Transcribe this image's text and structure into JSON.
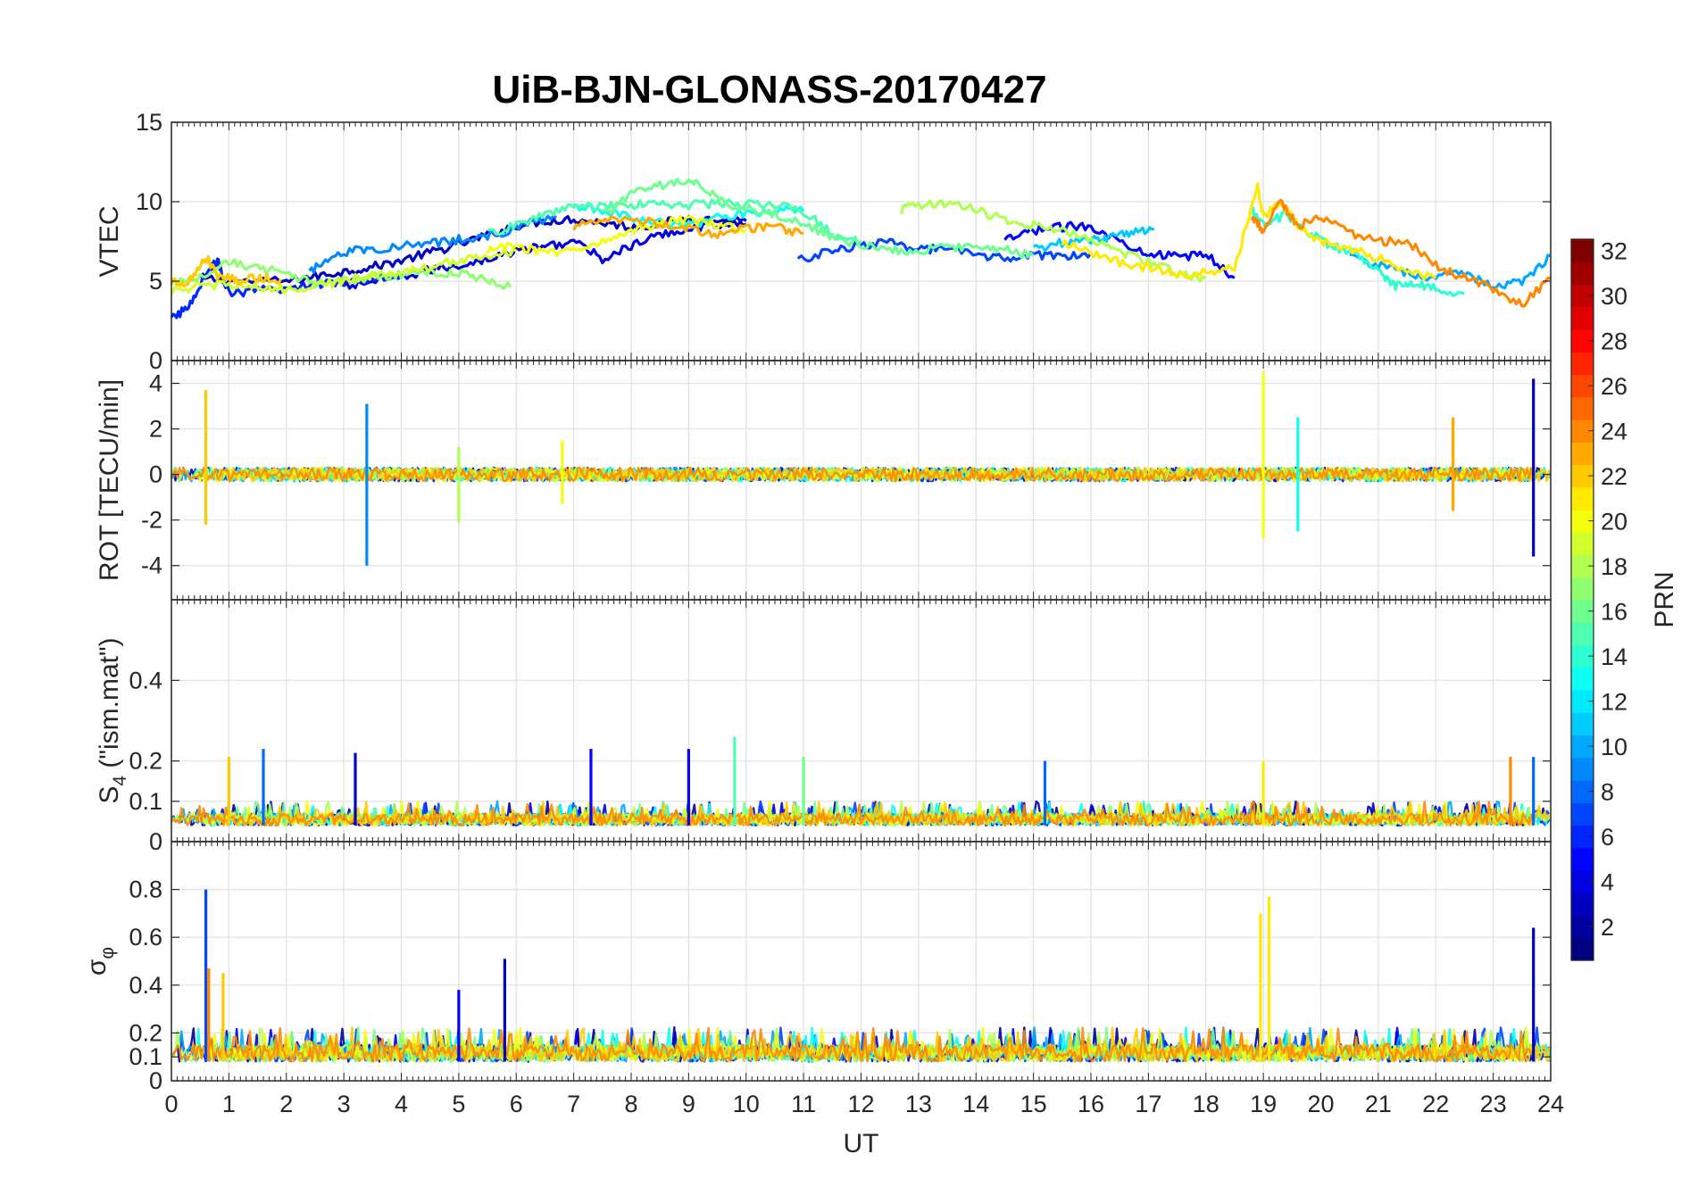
{
  "chart_data": [
    {
      "type": "line",
      "title": "UiB-BJN-GLONASS-20170427",
      "panel": "top",
      "ylabel": "VTEC",
      "xlabel": "",
      "xlim": [
        0,
        24
      ],
      "ylim": [
        0,
        15
      ],
      "yticks": [
        0,
        5,
        10,
        15
      ],
      "grid": true,
      "series": [
        {
          "prn": 3,
          "x": [
            0.5,
            1,
            2,
            2.5,
            3,
            3.5,
            4,
            4.5,
            5,
            5.5,
            6,
            6.5,
            7,
            7.5,
            8,
            8.5,
            9,
            9.5,
            10
          ],
          "y": [
            5.2,
            5.0,
            5.0,
            5.3,
            5.6,
            5.9,
            6.3,
            6.8,
            7.3,
            7.9,
            8.5,
            8.8,
            8.9,
            8.7,
            8.4,
            8.6,
            9.0,
            8.8,
            8.6
          ]
        },
        {
          "prn": 4,
          "x": [
            3,
            3.5,
            4,
            4.5,
            5,
            5.5,
            6,
            6.5,
            7,
            7.5,
            8,
            8.5,
            9,
            9.5,
            10
          ],
          "y": [
            4.6,
            5.0,
            5.2,
            5.7,
            6.0,
            6.4,
            6.9,
            7.2,
            7.5,
            6.4,
            7.2,
            7.9,
            8.3,
            8.6,
            8.8
          ]
        },
        {
          "prn": 5,
          "x": [
            14.5,
            15,
            15.5,
            16,
            16.5,
            17,
            17.5,
            18,
            18.5
          ],
          "y": [
            7.5,
            8.2,
            8.4,
            8.5,
            7.5,
            6.8,
            6.5,
            6.7,
            5.2
          ]
        },
        {
          "prn": 6,
          "x": [
            0,
            0.3,
            0.6,
            0.8,
            1,
            1.5,
            2,
            2.5,
            3,
            3.5,
            4
          ],
          "y": [
            2.6,
            3.4,
            5.5,
            6.3,
            4.2,
            4.4,
            4.5,
            4.8,
            5.0,
            5.2,
            5.4
          ]
        },
        {
          "prn": 7,
          "x": [
            10.9,
            11.5,
            12,
            12.5,
            13,
            13.5,
            14,
            14.5,
            15,
            15.5,
            16
          ],
          "y": [
            6.3,
            6.9,
            7.3,
            7.4,
            7.1,
            6.9,
            6.7,
            6.4,
            6.6,
            6.6,
            6.8
          ]
        },
        {
          "prn": 9,
          "x": [
            2.4,
            2.8,
            3.3,
            3.8,
            4.3,
            4.8,
            5.3,
            5.8,
            6.2,
            6.7
          ],
          "y": [
            5.5,
            6.7,
            7.0,
            7.1,
            7.3,
            7.5,
            7.8,
            8.0,
            8.6,
            9.0
          ]
        },
        {
          "prn": 10,
          "x": [
            20.5,
            21,
            21.5,
            22,
            22.5,
            23,
            23.5,
            24
          ],
          "y": [
            6.5,
            6.0,
            5.5,
            5.2,
            5.5,
            4.7,
            5.0,
            6.6
          ]
        },
        {
          "prn": 11,
          "x": [
            15,
            15.5,
            16,
            16.3,
            16.7,
            17.1
          ],
          "y": [
            7.0,
            7.4,
            7.6,
            7.7,
            8.1,
            8.3
          ]
        },
        {
          "prn": 13,
          "x": [
            7,
            7.5,
            8,
            8.5,
            9,
            9.5,
            10,
            10.5,
            11
          ],
          "y": [
            9.6,
            9.5,
            9.0,
            8.7,
            8.5,
            9.0,
            9.3,
            9.5,
            9.4
          ]
        },
        {
          "prn": 14,
          "x": [
            18.8,
            19,
            19.4,
            19.8,
            20.2,
            20.6,
            21,
            21.3,
            21.6,
            22,
            22.5
          ],
          "y": [
            9.5,
            8.5,
            9.2,
            8.0,
            7.2,
            6.7,
            5.7,
            4.7,
            4.9,
            4.5,
            4.2
          ]
        },
        {
          "prn": 15,
          "x": [
            5.5,
            6,
            6.5,
            7,
            7.5,
            8,
            8.5,
            9,
            9.5,
            10,
            10.5,
            11,
            11.5,
            12
          ],
          "y": [
            8.0,
            8.5,
            9.2,
            9.7,
            9.7,
            9.8,
            9.9,
            9.8,
            9.9,
            9.9,
            9.8,
            9.4,
            8.0,
            7.5
          ]
        },
        {
          "prn": 16,
          "x": [
            7.5,
            8,
            8.5,
            9,
            9.3,
            9.7,
            10,
            10.5,
            11,
            11.5,
            12,
            12.5,
            13,
            13.5,
            14,
            14.5,
            15
          ],
          "y": [
            9.2,
            10.5,
            11.0,
            11.3,
            10.8,
            9.8,
            9.7,
            9.2,
            8.6,
            7.8,
            7.3,
            7.0,
            6.9,
            7.1,
            7.2,
            7.0,
            6.6
          ]
        },
        {
          "prn": 17,
          "x": [
            0,
            0.5,
            1,
            1.5,
            2,
            2.5,
            3,
            3.5,
            4,
            4.5,
            5,
            5.5,
            5.9
          ],
          "y": [
            4.8,
            5.3,
            6.2,
            5.8,
            5.5,
            4.8,
            5.0,
            5.3,
            5.4,
            5.6,
            5.5,
            5.1,
            4.6
          ]
        },
        {
          "prn": 18,
          "x": [
            12.7,
            13,
            13.5,
            14,
            14.5,
            15,
            15.5,
            16,
            16.5,
            17,
            17.5,
            18
          ],
          "y": [
            9.5,
            9.8,
            9.9,
            9.5,
            8.8,
            8.5,
            8.2,
            7.5,
            6.8,
            6.2,
            5.5,
            5.2
          ]
        },
        {
          "prn": 19,
          "x": [
            0,
            0.5,
            1,
            1.5,
            2,
            2.5,
            3,
            3.5,
            4,
            4.5,
            5,
            5.5,
            6
          ],
          "y": [
            4.4,
            4.7,
            4.8,
            4.6,
            4.5,
            4.7,
            5.0,
            5.4,
            5.5,
            5.9,
            6.3,
            6.6,
            6.9
          ]
        },
        {
          "prn": 20,
          "x": [
            5.5,
            6,
            6.5,
            7,
            7.5,
            8,
            8.5,
            9,
            9.5,
            10
          ],
          "y": [
            7.0,
            7.2,
            6.8,
            7.0,
            7.5,
            8.2,
            8.6,
            8.9,
            8.5,
            8.2
          ]
        },
        {
          "prn": 21,
          "x": [
            15.5,
            16,
            16.5,
            17,
            17.5,
            18,
            18.5,
            18.9,
            19,
            19.3,
            19.6,
            20,
            20.5,
            21,
            21.5,
            22
          ],
          "y": [
            7.5,
            6.7,
            6.2,
            5.8,
            5.4,
            5.6,
            5.8,
            11.0,
            9.0,
            10.0,
            8.5,
            7.5,
            7.0,
            6.5,
            5.5,
            5.2
          ]
        },
        {
          "prn": 22,
          "x": [
            0,
            0.3,
            0.6,
            0.8,
            1,
            1.2,
            1.5,
            1.9
          ],
          "y": [
            5.0,
            4.9,
            6.5,
            5.4,
            5.2,
            5.0,
            5.2,
            5.1
          ]
        },
        {
          "prn": 23,
          "x": [
            7,
            7.5,
            8,
            8.5,
            9,
            9.5,
            10,
            10.5,
            11
          ],
          "y": [
            8.4,
            8.8,
            8.9,
            8.6,
            8.3,
            8.0,
            8.3,
            8.4,
            8.0
          ]
        },
        {
          "prn": 24,
          "x": [
            18.8,
            19,
            19.3,
            19.6,
            20,
            20.5,
            21,
            21.5,
            22,
            22.5,
            23,
            23.5,
            24
          ],
          "y": [
            9.0,
            8.2,
            10.0,
            8.5,
            9.0,
            8.0,
            7.5,
            7.5,
            6.0,
            5.2,
            4.5,
            3.5,
            5.2
          ]
        }
      ]
    },
    {
      "type": "line",
      "panel": "second",
      "ylabel": "ROT [TECU/min]",
      "xlabel": "",
      "xlim": [
        0,
        24
      ],
      "ylim": [
        -5.5,
        5
      ],
      "yticks": [
        -4,
        -2,
        0,
        2,
        4
      ],
      "grid": true,
      "baseline": 0,
      "spikes": [
        {
          "prn": 22,
          "x": 0.6,
          "min": -2.2,
          "max": 3.7
        },
        {
          "prn": 9,
          "x": 3.4,
          "min": -4.0,
          "max": 3.1
        },
        {
          "prn": 18,
          "x": 5.0,
          "min": -2.1,
          "max": 1.2
        },
        {
          "prn": 20,
          "x": 6.8,
          "min": -1.3,
          "max": 1.5
        },
        {
          "prn": 20,
          "x": 19.0,
          "min": -2.8,
          "max": 4.5
        },
        {
          "prn": 13,
          "x": 19.6,
          "min": -2.5,
          "max": 2.5
        },
        {
          "prn": 23,
          "x": 22.3,
          "min": -1.6,
          "max": 2.5
        },
        {
          "prn": 3,
          "x": 23.7,
          "min": -3.6,
          "max": 4.2
        }
      ]
    },
    {
      "type": "line",
      "panel": "third",
      "ylabel": "S4 (\"ism.mat\")",
      "ylabel_main": "S",
      "ylabel_sub": "4",
      "ylabel_rest": " (\"ism.mat\")",
      "xlabel": "",
      "xlim": [
        0,
        24
      ],
      "ylim": [
        0,
        0.6
      ],
      "yticks": [
        0,
        0.1,
        0.2,
        0.4
      ],
      "grid": true,
      "baseline_range": [
        0.04,
        0.09
      ],
      "spikes": [
        {
          "prn": 22,
          "x": 1.0,
          "max": 0.21
        },
        {
          "prn": 8,
          "x": 1.6,
          "max": 0.23
        },
        {
          "prn": 3,
          "x": 3.2,
          "max": 0.22
        },
        {
          "prn": 5,
          "x": 7.3,
          "max": 0.23
        },
        {
          "prn": 5,
          "x": 9.0,
          "max": 0.23
        },
        {
          "prn": 15,
          "x": 9.8,
          "max": 0.26
        },
        {
          "prn": 16,
          "x": 11.0,
          "max": 0.21
        },
        {
          "prn": 8,
          "x": 15.2,
          "max": 0.2
        },
        {
          "prn": 21,
          "x": 19.0,
          "max": 0.2
        },
        {
          "prn": 24,
          "x": 23.3,
          "max": 0.21
        },
        {
          "prn": 8,
          "x": 23.7,
          "max": 0.21
        }
      ]
    },
    {
      "type": "line",
      "panel": "bottom",
      "ylabel": "σφ",
      "ylabel_main": "σ",
      "ylabel_sub": "φ",
      "xlabel": "UT",
      "xlim": [
        0,
        24
      ],
      "ylim": [
        0,
        1.0
      ],
      "yticks": [
        0,
        0.1,
        0.2,
        0.4,
        0.6,
        0.8
      ],
      "xticks": [
        0,
        1,
        2,
        3,
        4,
        5,
        6,
        7,
        8,
        9,
        10,
        11,
        12,
        13,
        14,
        15,
        16,
        17,
        18,
        19,
        20,
        21,
        22,
        23,
        24
      ],
      "grid": true,
      "baseline_range": [
        0.08,
        0.2
      ],
      "spikes": [
        {
          "prn": 7,
          "x": 0.6,
          "max": 0.8
        },
        {
          "prn": 24,
          "x": 0.65,
          "max": 0.47
        },
        {
          "prn": 22,
          "x": 0.9,
          "max": 0.45
        },
        {
          "prn": 5,
          "x": 5.0,
          "max": 0.38
        },
        {
          "prn": 3,
          "x": 5.8,
          "max": 0.51
        },
        {
          "prn": 21,
          "x": 18.95,
          "max": 0.7
        },
        {
          "prn": 21,
          "x": 19.1,
          "max": 0.77
        },
        {
          "prn": 3,
          "x": 23.7,
          "max": 0.64
        }
      ]
    }
  ],
  "colorbar": {
    "label": "PRN",
    "range": [
      1,
      32
    ],
    "ticks": [
      2,
      4,
      6,
      8,
      10,
      12,
      14,
      16,
      18,
      20,
      22,
      24,
      26,
      28,
      30,
      32
    ],
    "colormap": "jet"
  },
  "colors": {
    "axes": "#262626",
    "grid": "#e1e1e1"
  }
}
